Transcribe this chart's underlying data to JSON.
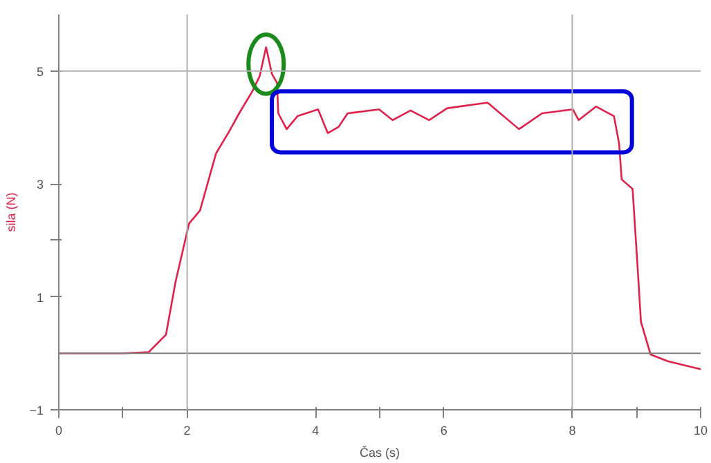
{
  "chart_data": {
    "type": "line",
    "xlabel": "Čas (s)",
    "ylabel": "sila (N)",
    "x": [
      0,
      0.5,
      1.0,
      1.4,
      1.67,
      1.82,
      2.03,
      2.2,
      2.45,
      2.66,
      2.81,
      3.02,
      3.13,
      3.23,
      3.32,
      3.4,
      3.42,
      3.55,
      3.72,
      4.04,
      4.19,
      4.36,
      4.5,
      4.99,
      5.2,
      5.48,
      5.77,
      6.05,
      6.68,
      7.17,
      7.53,
      8.01,
      8.1,
      8.37,
      8.65,
      8.73,
      8.77,
      8.94,
      9.01,
      9.07,
      9.22,
      9.49,
      9.92,
      10
    ],
    "series": [
      {
        "color": "#e0204a",
        "values": [
          0,
          0,
          0,
          0.02,
          0.33,
          1.27,
          2.3,
          2.53,
          3.54,
          3.94,
          4.25,
          4.65,
          4.91,
          5.42,
          4.95,
          4.79,
          4.25,
          3.97,
          4.2,
          4.32,
          3.9,
          4.01,
          4.25,
          4.32,
          4.13,
          4.3,
          4.13,
          4.34,
          4.44,
          3.97,
          4.25,
          4.32,
          4.13,
          4.37,
          4.2,
          3.71,
          3.08,
          2.91,
          1.67,
          0.56,
          -0.02,
          -0.14,
          -0.26,
          -0.28
        ]
      }
    ],
    "xlim": [
      0,
      10
    ],
    "ylim": [
      -1,
      6
    ],
    "xticks": [
      0,
      {
        "value": 1,
        "label": null
      },
      2,
      4,
      {
        "value": 5,
        "label": null
      },
      6,
      8,
      {
        "value": 9,
        "label": null
      },
      10
    ],
    "yticks": [
      -1,
      1,
      {
        "value": 2,
        "label": null
      },
      3,
      5
    ],
    "ref_lines": [
      {
        "axis": "y",
        "value": 0,
        "color": "#808080"
      },
      {
        "axis": "y",
        "value": 5,
        "color": "#b0b0b0"
      },
      {
        "axis": "x",
        "value": 2,
        "color": "#b0b0b0"
      },
      {
        "axis": "x",
        "value": 8,
        "color": "#b0b0b0"
      }
    ],
    "marker": "none",
    "line_style": "solid"
  }
}
